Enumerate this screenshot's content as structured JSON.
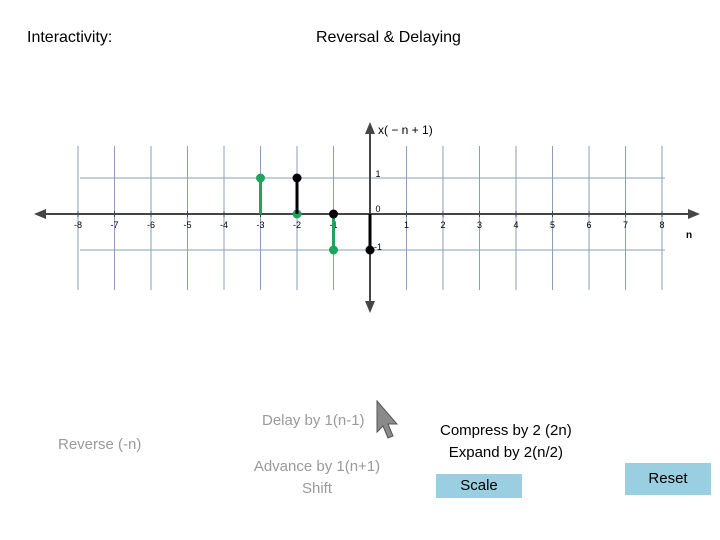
{
  "header": {
    "interactivity_label": "Interactivity:",
    "title": "Reversal & Delaying"
  },
  "plot": {
    "function_label": "x( − n + 1)",
    "n_axis_label": "n",
    "x_ticks": [
      "-8",
      "-7",
      "-6",
      "-5",
      "-4",
      "-3",
      "-2",
      "-1",
      "0",
      "1",
      "2",
      "3",
      "4",
      "5",
      "6",
      "7",
      "8"
    ],
    "y_ticks": [
      "1",
      "-1"
    ],
    "black_stems": [
      {
        "n": -2,
        "value": 1
      },
      {
        "n": -1,
        "value": 0
      },
      {
        "n": 0,
        "value": -1
      }
    ],
    "green_stems": [
      {
        "n": -3,
        "value": 1
      },
      {
        "n": -2,
        "value": 0
      },
      {
        "n": -1,
        "value": -1
      }
    ],
    "colors": {
      "black": "#000000",
      "green": "#21a35b",
      "grid": "#8a9fbd",
      "axis": "#454545"
    }
  },
  "controls": {
    "reverse_label": "Reverse (-n)",
    "delay_label": "Delay by 1(n-1)",
    "advance_label": "Advance by 1(n+1)",
    "shift_label": "Shift",
    "compress_label": "Compress by 2 (2n)",
    "expand_label": "Expand by 2(n/2)",
    "scale_button": "Scale",
    "reset_button": "Reset"
  },
  "cursor_icon": "arrow-cursor-icon"
}
